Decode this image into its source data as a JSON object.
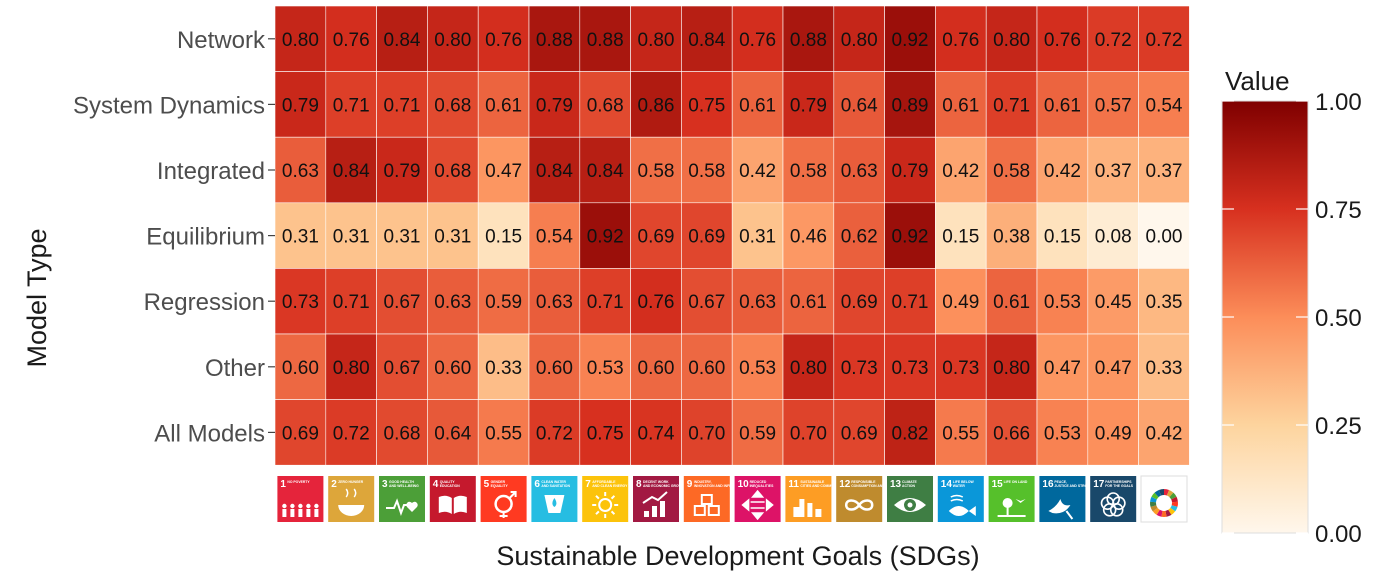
{
  "chart_data": {
    "type": "heatmap",
    "title": "",
    "xlabel": "Sustainable Development Goals (SDGs)",
    "ylabel": "Model Type",
    "rows": [
      "Network",
      "System Dynamics",
      "Integrated",
      "Equilibrium",
      "Regression",
      "Other",
      "All Models"
    ],
    "columns": [
      {
        "number": "1",
        "short": "NO POVERTY",
        "color": "#e5243b",
        "icon": "family-icon"
      },
      {
        "number": "2",
        "short": "ZERO HUNGER",
        "color": "#dda63a",
        "icon": "bowl-icon"
      },
      {
        "number": "3",
        "short": "GOOD HEALTH AND WELL-BEING",
        "color": "#4c9f38",
        "icon": "heartbeat-icon"
      },
      {
        "number": "4",
        "short": "QUALITY EDUCATION",
        "color": "#c5192d",
        "icon": "book-icon"
      },
      {
        "number": "5",
        "short": "GENDER EQUALITY",
        "color": "#ff3a21",
        "icon": "gender-icon"
      },
      {
        "number": "6",
        "short": "CLEAN WATER AND SANITATION",
        "color": "#26bde2",
        "icon": "water-drop-icon"
      },
      {
        "number": "7",
        "short": "AFFORDABLE AND CLEAN ENERGY",
        "color": "#fcc30b",
        "icon": "sun-icon"
      },
      {
        "number": "8",
        "short": "DECENT WORK AND ECONOMIC GROWTH",
        "color": "#a21942",
        "icon": "growth-chart-icon"
      },
      {
        "number": "9",
        "short": "INDUSTRY, INNOVATION AND INFRASTRUCTURE",
        "color": "#fd6925",
        "icon": "cubes-icon"
      },
      {
        "number": "10",
        "short": "REDUCED INEQUALITIES",
        "color": "#dd1367",
        "icon": "equality-icon"
      },
      {
        "number": "11",
        "short": "SUSTAINABLE CITIES AND COMMUNITIES",
        "color": "#fd9d24",
        "icon": "city-icon"
      },
      {
        "number": "12",
        "short": "RESPONSIBLE CONSUMPTION AND PRODUCTION",
        "color": "#bf8b2e",
        "icon": "infinity-icon"
      },
      {
        "number": "13",
        "short": "CLIMATE ACTION",
        "color": "#3f7e44",
        "icon": "eye-globe-icon"
      },
      {
        "number": "14",
        "short": "LIFE BELOW WATER",
        "color": "#0a97d9",
        "icon": "fish-icon"
      },
      {
        "number": "15",
        "short": "LIFE ON LAND",
        "color": "#56c02b",
        "icon": "tree-bird-icon"
      },
      {
        "number": "16",
        "short": "PEACE, JUSTICE AND STRONG INSTITUTIONS",
        "color": "#00689d",
        "icon": "dove-icon"
      },
      {
        "number": "17",
        "short": "PARTNERSHIPS FOR THE GOALS",
        "color": "#19486a",
        "icon": "partnership-flower-icon"
      },
      {
        "number": "",
        "short": "",
        "color": "#ffffff",
        "icon": "sdg-wheel-icon"
      }
    ],
    "values": [
      [
        0.8,
        0.76,
        0.84,
        0.8,
        0.76,
        0.88,
        0.88,
        0.8,
        0.84,
        0.76,
        0.88,
        0.8,
        0.92,
        0.76,
        0.8,
        0.76,
        0.72,
        0.72
      ],
      [
        0.79,
        0.71,
        0.71,
        0.68,
        0.61,
        0.79,
        0.68,
        0.86,
        0.75,
        0.61,
        0.79,
        0.64,
        0.89,
        0.61,
        0.71,
        0.61,
        0.57,
        0.54
      ],
      [
        0.63,
        0.84,
        0.79,
        0.68,
        0.47,
        0.84,
        0.84,
        0.58,
        0.58,
        0.42,
        0.58,
        0.63,
        0.79,
        0.42,
        0.58,
        0.42,
        0.37,
        0.37
      ],
      [
        0.31,
        0.31,
        0.31,
        0.31,
        0.15,
        0.54,
        0.92,
        0.69,
        0.69,
        0.31,
        0.46,
        0.62,
        0.92,
        0.15,
        0.38,
        0.15,
        0.08,
        0.0
      ],
      [
        0.73,
        0.71,
        0.67,
        0.63,
        0.59,
        0.63,
        0.71,
        0.76,
        0.67,
        0.63,
        0.61,
        0.69,
        0.71,
        0.49,
        0.61,
        0.53,
        0.45,
        0.35
      ],
      [
        0.6,
        0.8,
        0.67,
        0.6,
        0.33,
        0.6,
        0.53,
        0.6,
        0.6,
        0.53,
        0.8,
        0.73,
        0.73,
        0.73,
        0.8,
        0.47,
        0.47,
        0.33
      ],
      [
        0.69,
        0.72,
        0.68,
        0.64,
        0.55,
        0.72,
        0.75,
        0.74,
        0.7,
        0.59,
        0.7,
        0.69,
        0.82,
        0.55,
        0.66,
        0.53,
        0.49,
        0.42
      ]
    ],
    "legend": {
      "title": "Value",
      "range": [
        0,
        1
      ],
      "ticks": [
        "0.00",
        "0.25",
        "0.50",
        "0.75",
        "1.00"
      ],
      "placement": "right"
    },
    "color_scale": [
      "#fff7ec",
      "#fdd49e",
      "#fc8d59",
      "#d7301f",
      "#7f0000"
    ],
    "grid": false
  }
}
